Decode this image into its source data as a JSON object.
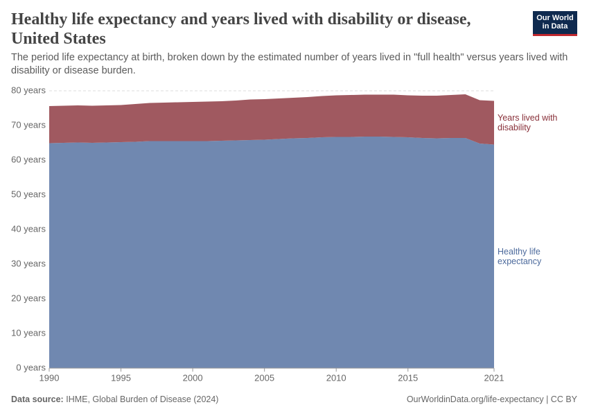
{
  "header": {
    "title": "Healthy life expectancy and years lived with disability or disease, United States",
    "subtitle": "The period life expectancy at birth, broken down by the estimated number of years lived in \"full health\" versus years lived with disability or disease burden.",
    "logo": "Our World in Data"
  },
  "chart_data": {
    "type": "stacked-area",
    "x": [
      1990,
      1991,
      1992,
      1993,
      1994,
      1995,
      1996,
      1997,
      1998,
      1999,
      2000,
      2001,
      2002,
      2003,
      2004,
      2005,
      2006,
      2007,
      2008,
      2009,
      2010,
      2011,
      2012,
      2013,
      2014,
      2015,
      2016,
      2017,
      2018,
      2019,
      2020,
      2021
    ],
    "xlim": [
      1990,
      2021
    ],
    "xticks": [
      1990,
      1995,
      2000,
      2005,
      2010,
      2015,
      2021
    ],
    "ylim": [
      0,
      80
    ],
    "yticks": [
      {
        "value": 0,
        "label": "0 years"
      },
      {
        "value": 10,
        "label": "10 years"
      },
      {
        "value": 20,
        "label": "20 years"
      },
      {
        "value": 30,
        "label": "30 years"
      },
      {
        "value": 40,
        "label": "40 years"
      },
      {
        "value": 50,
        "label": "50 years"
      },
      {
        "value": 60,
        "label": "60 years"
      },
      {
        "value": 70,
        "label": "70 years"
      },
      {
        "value": 80,
        "label": "80 years"
      }
    ],
    "grid": true,
    "series": [
      {
        "name": "Healthy life expectancy",
        "color": "#7088b0",
        "label_color": "#4c6a9c",
        "values": [
          64.9,
          65.0,
          65.1,
          65.0,
          65.1,
          65.2,
          65.3,
          65.5,
          65.5,
          65.5,
          65.5,
          65.5,
          65.6,
          65.7,
          65.8,
          65.9,
          66.1,
          66.3,
          66.4,
          66.6,
          66.7,
          66.7,
          66.8,
          66.8,
          66.7,
          66.6,
          66.4,
          66.3,
          66.4,
          66.4,
          64.8,
          64.5
        ]
      },
      {
        "name": "Years lived with disability",
        "color": "#a05960",
        "label_color": "#883039",
        "values": [
          10.7,
          10.7,
          10.7,
          10.7,
          10.7,
          10.7,
          10.9,
          11.0,
          11.1,
          11.2,
          11.3,
          11.4,
          11.4,
          11.5,
          11.7,
          11.7,
          11.7,
          11.7,
          11.8,
          11.9,
          12.0,
          12.1,
          12.1,
          12.1,
          12.2,
          12.1,
          12.2,
          12.3,
          12.4,
          12.6,
          12.5,
          12.6
        ]
      }
    ]
  },
  "footer": {
    "source_label": "Data source:",
    "source": "IHME, Global Burden of Disease (2024)",
    "url": "OurWorldinData.org/life-expectancy | CC BY"
  }
}
